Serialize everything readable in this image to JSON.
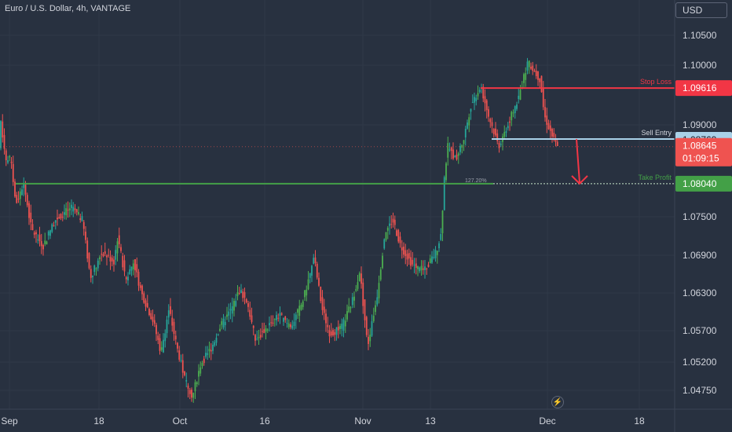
{
  "header": {
    "symbol_title": "Euro / U.S. Dollar, 4h, VANTAGE",
    "currency": "USD"
  },
  "colors": {
    "background": "#283140",
    "up": "#26a69a",
    "up_bright": "#4caf50",
    "down": "#ef5350",
    "stop_loss": "#f23645",
    "entry": "#a9d1e8",
    "take_profit": "#43a047",
    "grid": "#2f3948"
  },
  "icons": {
    "bolt": "lightning-icon"
  },
  "chart_data": {
    "type": "candlestick",
    "title": "Euro / U.S. Dollar, 4h, VANTAGE",
    "y_axis": {
      "ticks": [
        1.105,
        1.1,
        1.09616,
        1.09,
        1.08769,
        1.08645,
        1.0804,
        1.075,
        1.069,
        1.063,
        1.057,
        1.052,
        1.0475
      ],
      "tick_labels": [
        "1.10500",
        "1.10000",
        "1.09000",
        "1.07500",
        "1.06900",
        "1.06300",
        "1.05700",
        "1.05200",
        "1.04750"
      ],
      "range": [
        1.043,
        1.112
      ]
    },
    "x_axis": {
      "tick_labels": [
        "Sep",
        "18",
        "Oct",
        "16",
        "Nov",
        "13",
        "Dec",
        "18"
      ]
    },
    "grid": true,
    "price_path": [
      [
        0,
        1.0915
      ],
      [
        8,
        1.084
      ],
      [
        14,
        1.0845
      ],
      [
        20,
        1.077
      ],
      [
        30,
        1.0805
      ],
      [
        40,
        1.073
      ],
      [
        55,
        1.0705
      ],
      [
        70,
        1.0745
      ],
      [
        90,
        1.0765
      ],
      [
        105,
        1.0745
      ],
      [
        115,
        1.0655
      ],
      [
        130,
        1.0695
      ],
      [
        145,
        1.068
      ],
      [
        150,
        1.072
      ],
      [
        160,
        1.065
      ],
      [
        170,
        1.068
      ],
      [
        180,
        1.063
      ],
      [
        195,
        1.0585
      ],
      [
        205,
        1.0535
      ],
      [
        215,
        1.0605
      ],
      [
        225,
        1.0545
      ],
      [
        235,
        1.0495
      ],
      [
        245,
        1.0465
      ],
      [
        255,
        1.0515
      ],
      [
        270,
        1.0545
      ],
      [
        280,
        1.0575
      ],
      [
        295,
        1.0605
      ],
      [
        305,
        1.0635
      ],
      [
        315,
        1.0615
      ],
      [
        325,
        1.0555
      ],
      [
        340,
        1.0575
      ],
      [
        355,
        1.0595
      ],
      [
        370,
        1.0575
      ],
      [
        385,
        1.0615
      ],
      [
        400,
        1.0685
      ],
      [
        410,
        1.0605
      ],
      [
        420,
        1.0565
      ],
      [
        435,
        1.0575
      ],
      [
        448,
        1.0615
      ],
      [
        458,
        1.0665
      ],
      [
        468,
        1.0545
      ],
      [
        480,
        1.0625
      ],
      [
        490,
        1.0725
      ],
      [
        500,
        1.0745
      ],
      [
        510,
        1.0705
      ],
      [
        525,
        1.0675
      ],
      [
        540,
        1.0665
      ],
      [
        555,
        1.0695
      ],
      [
        562,
        1.0725
      ],
      [
        565,
        1.0805
      ],
      [
        570,
        1.0865
      ],
      [
        580,
        1.0845
      ],
      [
        590,
        1.0875
      ],
      [
        600,
        1.0935
      ],
      [
        612,
        1.0965
      ],
      [
        622,
        1.0915
      ],
      [
        635,
        1.0865
      ],
      [
        648,
        1.0905
      ],
      [
        660,
        1.0945
      ],
      [
        672,
        1.1005
      ],
      [
        688,
        1.0975
      ],
      [
        693,
        1.0915
      ],
      [
        702,
        1.0885
      ],
      [
        710,
        1.0862
      ]
    ],
    "levels": [
      {
        "label": "Stop Loss",
        "value": 1.09616,
        "badge": "1.09616"
      },
      {
        "label": "Sell Entry",
        "value": 1.08769,
        "badge": "1.08769"
      },
      {
        "label": "Take Profit",
        "value": 1.0804,
        "badge": "1.08040",
        "annotation": "127.20%"
      }
    ],
    "current_price": {
      "value": 1.08645,
      "badge": "1.08645",
      "countdown": "01:09:15"
    }
  }
}
